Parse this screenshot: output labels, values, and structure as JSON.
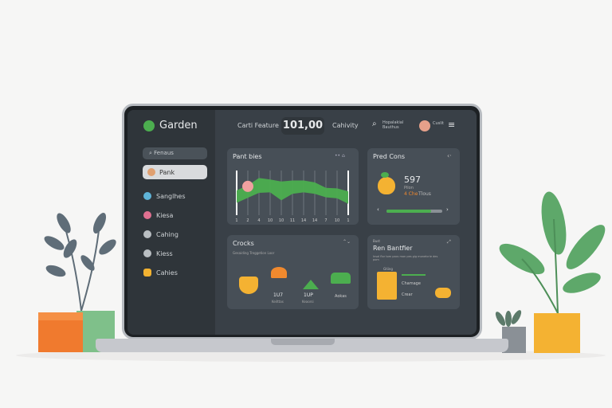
{
  "app": {
    "title": "Garden"
  },
  "header": {
    "left_label": "Carti Feature",
    "counter": "101,00",
    "right_label": "Cahivity",
    "search_text": "Hopalakial Bauthus",
    "user_text": "Cuslit"
  },
  "sidebar": {
    "search_placeholder": "Fenaus",
    "items": [
      {
        "label": "Pank",
        "icon": "avatar-icon",
        "color": "#e0a070",
        "active": true
      },
      {
        "label": "Sanglhes",
        "icon": "plant-icon",
        "color": "#5fb4d8"
      },
      {
        "label": "Kiesa",
        "icon": "flower-icon",
        "color": "#e07090"
      },
      {
        "label": "Cahing",
        "icon": "gear-icon",
        "color": "#b9bec2"
      },
      {
        "label": "Kiess",
        "icon": "gear-icon",
        "color": "#b9bec2"
      },
      {
        "label": "Cahies",
        "icon": "folder-icon",
        "color": "#f2b231"
      }
    ]
  },
  "chart_card": {
    "title": "Pant bies",
    "badge": "TL",
    "x_labels": [
      "1",
      "2",
      "4",
      "10",
      "10",
      "11",
      "14",
      "14",
      "7",
      "10",
      "1"
    ]
  },
  "chart_data": {
    "type": "area",
    "title": "Pant bies",
    "x": [
      "1",
      "2",
      "4",
      "10",
      "10",
      "11",
      "14",
      "14",
      "7",
      "10",
      "1"
    ],
    "upper": [
      5,
      6,
      7.5,
      7.2,
      6.8,
      7,
      7,
      6.6,
      5.5,
      5.4,
      4.8
    ],
    "lower": [
      2.5,
      3.5,
      4.5,
      4.6,
      3,
      4.3,
      4.6,
      4.3,
      3.6,
      3.4,
      2.3
    ],
    "color": "#4cae4f"
  },
  "prod_card": {
    "title": "Pred Cons",
    "value": "597",
    "sub_label": "Pilon",
    "highlight": "4 Che",
    "highlight_sub": "Tlous",
    "slider_percent": 80
  },
  "crops_card": {
    "title": "Crocks",
    "subtitle": "Gesaiding Treggetion Loor",
    "items": [
      {
        "icon": "apple-icon",
        "label": ""
      },
      {
        "icon": "mushroom-icon",
        "label": "1U7",
        "sub": "Keilttas"
      },
      {
        "icon": "carrot-icon",
        "label": "1UP",
        "sub": "Keaorsi"
      },
      {
        "icon": "basket-icon",
        "label": "Aokas"
      }
    ]
  },
  "detail_card": {
    "kicker": "Bust",
    "title": "Ren Bantfier",
    "subtitle": "Insal flor tom pacs mon pes gig monetcrie des pom",
    "doc_label": "Gtiing",
    "line1": "Chamage",
    "line2": "Crear"
  },
  "colors": {
    "accent": "#4cae4f",
    "orange": "#f0892e",
    "yellow": "#f4b232",
    "bg": "#394047"
  }
}
